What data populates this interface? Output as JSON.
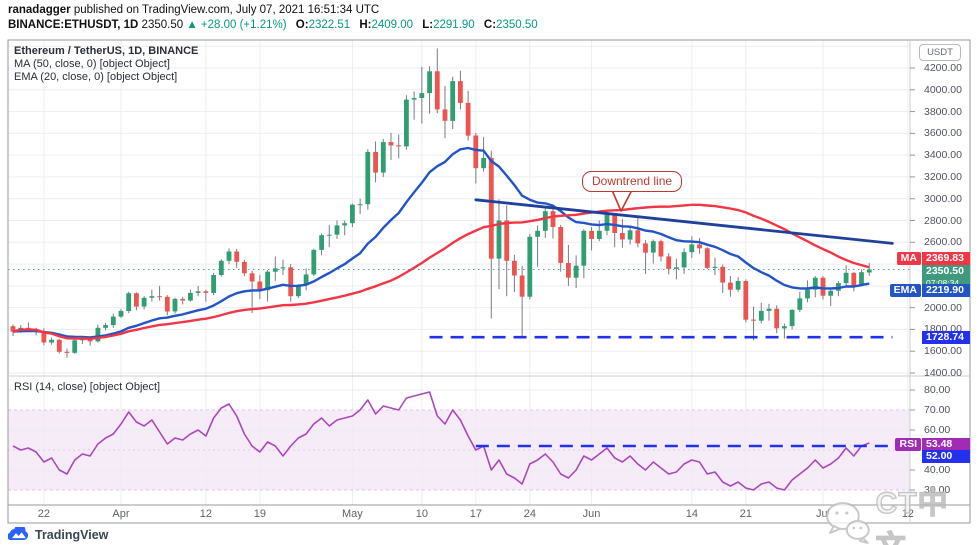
{
  "header": {
    "author": "ranadagger",
    "published": " published on TradingView.com, July 07, 2021 16:51:34 UTC",
    "line2": {
      "symbol": "BINANCE:ETHUSDT, 1D",
      "price": "2350.50",
      "change": "▲ +28.00 (+1.21%)",
      "o_label": "O:",
      "o": "2322.51",
      "h_label": "H:",
      "h": "2409.00",
      "l_label": "L:",
      "l": "2291.90",
      "c_label": "C:",
      "c": "2350.50"
    }
  },
  "legend": {
    "main": "Ethereum / TetherUS, 1D, BINANCE",
    "ma": "MA (50, close, 0) [object Object]",
    "ema": "EMA (20, close, 0) [object Object]",
    "rsi": "RSI (14, close) [object Object]"
  },
  "axis": {
    "currency": "USDT",
    "price_ticks": [
      {
        "v": 4200,
        "t": "4200.00"
      },
      {
        "v": 4000,
        "t": "4000.00"
      },
      {
        "v": 3800,
        "t": "3800.00"
      },
      {
        "v": 3600,
        "t": "3600.00"
      },
      {
        "v": 3400,
        "t": "3400.00"
      },
      {
        "v": 3200,
        "t": "3200.00"
      },
      {
        "v": 3000,
        "t": "3000.00"
      },
      {
        "v": 2800,
        "t": "2800.00"
      },
      {
        "v": 2600,
        "t": "2600.00"
      },
      {
        "v": 2000,
        "t": "2000.00"
      },
      {
        "v": 1800,
        "t": "1800.00"
      },
      {
        "v": 1600,
        "t": "1600.00"
      },
      {
        "v": 1400,
        "t": "1400.00"
      }
    ],
    "rsi_ticks": [
      {
        "v": 80,
        "t": "80.00"
      },
      {
        "v": 70,
        "t": "70.00"
      },
      {
        "v": 60,
        "t": "60.00"
      },
      {
        "v": 40,
        "t": "40.00"
      },
      {
        "v": 30,
        "t": "30.00"
      }
    ],
    "time_labels": [
      {
        "t": "22",
        "d": 4
      },
      {
        "t": "Apr",
        "d": 14
      },
      {
        "t": "12",
        "d": 25
      },
      {
        "t": "19",
        "d": 32
      },
      {
        "t": "May",
        "d": 44
      },
      {
        "t": "10",
        "d": 53
      },
      {
        "t": "17",
        "d": 60
      },
      {
        "t": "24",
        "d": 67
      },
      {
        "t": "Jun",
        "d": 75
      },
      {
        "t": "14",
        "d": 88
      },
      {
        "t": "21",
        "d": 95
      },
      {
        "t": "Jul",
        "d": 105
      },
      {
        "t": "12",
        "d": 116
      }
    ]
  },
  "badges": {
    "ma": {
      "tag": "MA",
      "value": "2369.83"
    },
    "price": {
      "value": "2350.50",
      "countdown": "07:08:34"
    },
    "ema": {
      "tag": "EMA",
      "value": "2219.90"
    },
    "support": {
      "value": "1728.74"
    },
    "rsi": {
      "tag": "RSI",
      "value": "53.48"
    },
    "rsi_level": {
      "value": "52.00"
    }
  },
  "annotation": {
    "text": "Downtrend line"
  },
  "watermark": {
    "text": "CT中文"
  },
  "footer": {
    "brand": "TradingView"
  },
  "colors": {
    "up": "#2f9e71",
    "down": "#ef5350",
    "wick": "#787b86",
    "ma_line": "#f23645",
    "ema_line": "#2254c5",
    "trend_line": "#1f419b",
    "dashed_blue": "#2330ee",
    "rsi_line": "#ab47bc",
    "rsi_band": "#ab47bc",
    "teal_text": "#089981",
    "price_badge": "#3f9a7d",
    "rsi_badge": "#a12bb4",
    "grid": "#ebedf0",
    "border": "#9598a1"
  },
  "chart_data": {
    "type": "candlestick",
    "symbol": "BINANCE:ETHUSDT",
    "interval": "1D",
    "start_date": "2021-03-18",
    "price_axis": {
      "min": 1400,
      "max": 4460,
      "tick_step": 200
    },
    "rsi_axis": {
      "min": 25,
      "max": 85,
      "bands": [
        30,
        50,
        70
      ]
    },
    "candles_ohlc": [
      [
        1830,
        1845,
        1740,
        1780
      ],
      [
        1780,
        1840,
        1770,
        1815
      ],
      [
        1815,
        1865,
        1790,
        1805
      ],
      [
        1805,
        1815,
        1745,
        1785
      ],
      [
        1785,
        1810,
        1655,
        1680
      ],
      [
        1680,
        1725,
        1660,
        1705
      ],
      [
        1705,
        1715,
        1580,
        1595
      ],
      [
        1595,
        1625,
        1540,
        1585
      ],
      [
        1585,
        1705,
        1575,
        1700
      ],
      [
        1700,
        1735,
        1665,
        1715
      ],
      [
        1715,
        1730,
        1650,
        1690
      ],
      [
        1690,
        1845,
        1680,
        1815
      ],
      [
        1815,
        1860,
        1790,
        1840
      ],
      [
        1840,
        1945,
        1815,
        1918
      ],
      [
        1918,
        1990,
        1905,
        1970
      ],
      [
        1970,
        2145,
        1950,
        2133
      ],
      [
        2133,
        2140,
        1975,
        2010
      ],
      [
        2010,
        2105,
        1985,
        2090
      ],
      [
        2090,
        2165,
        2055,
        2105
      ],
      [
        2105,
        2200,
        2065,
        2100
      ],
      [
        2100,
        2115,
        1930,
        1965
      ],
      [
        1965,
        2090,
        1945,
        2080
      ],
      [
        2080,
        2100,
        2030,
        2065
      ],
      [
        2065,
        2165,
        2055,
        2135
      ],
      [
        2135,
        2200,
        2105,
        2150
      ],
      [
        2150,
        2165,
        2055,
        2135
      ],
      [
        2135,
        2320,
        2115,
        2300
      ],
      [
        2300,
        2445,
        2285,
        2430
      ],
      [
        2430,
        2545,
        2400,
        2515
      ],
      [
        2515,
        2540,
        2365,
        2420
      ],
      [
        2420,
        2440,
        2290,
        2315
      ],
      [
        2315,
        2340,
        1950,
        2240
      ],
      [
        2240,
        2300,
        2080,
        2160
      ],
      [
        2160,
        2345,
        2055,
        2330
      ],
      [
        2330,
        2470,
        2245,
        2360
      ],
      [
        2360,
        2440,
        2300,
        2370
      ],
      [
        2370,
        2400,
        2055,
        2105
      ],
      [
        2105,
        2215,
        2090,
        2210
      ],
      [
        2210,
        2360,
        2160,
        2305
      ],
      [
        2305,
        2540,
        2290,
        2530
      ],
      [
        2530,
        2680,
        2480,
        2665
      ],
      [
        2665,
        2760,
        2555,
        2670
      ],
      [
        2670,
        2800,
        2630,
        2755
      ],
      [
        2755,
        2800,
        2665,
        2775
      ],
      [
        2775,
        2955,
        2740,
        2945
      ],
      [
        2945,
        3000,
        2860,
        2950
      ],
      [
        2950,
        3455,
        2900,
        3430
      ],
      [
        3430,
        3525,
        3150,
        3240
      ],
      [
        3240,
        3550,
        3200,
        3520
      ],
      [
        3520,
        3605,
        3355,
        3490
      ],
      [
        3490,
        3590,
        3370,
        3480
      ],
      [
        3480,
        3950,
        3450,
        3910
      ],
      [
        3910,
        3985,
        3725,
        3925
      ],
      [
        3925,
        4210,
        3690,
        3970
      ],
      [
        3970,
        4215,
        3780,
        4170
      ],
      [
        4170,
        4380,
        3785,
        3820
      ],
      [
        3820,
        4035,
        3555,
        3715
      ],
      [
        3715,
        4120,
        3640,
        4080
      ],
      [
        4080,
        4175,
        3820,
        3880
      ],
      [
        3880,
        3990,
        3535,
        3580
      ],
      [
        3580,
        3605,
        3140,
        3280
      ],
      [
        3280,
        3565,
        3250,
        3375
      ],
      [
        3375,
        3440,
        1900,
        2450
      ],
      [
        2450,
        2995,
        2170,
        2800
      ],
      [
        2800,
        2940,
        2105,
        2430
      ],
      [
        2430,
        2485,
        2145,
        2295
      ],
      [
        2295,
        2385,
        1728,
        2100
      ],
      [
        2100,
        2675,
        2075,
        2650
      ],
      [
        2650,
        2755,
        2375,
        2705
      ],
      [
        2705,
        2910,
        2640,
        2885
      ],
      [
        2885,
        2915,
        2635,
        2740
      ],
      [
        2740,
        2760,
        2330,
        2410
      ],
      [
        2410,
        2575,
        2200,
        2275
      ],
      [
        2275,
        2480,
        2180,
        2385
      ],
      [
        2385,
        2720,
        2270,
        2705
      ],
      [
        2705,
        2740,
        2525,
        2630
      ],
      [
        2630,
        2800,
        2610,
        2705
      ],
      [
        2705,
        2890,
        2665,
        2855
      ],
      [
        2855,
        2860,
        2555,
        2685
      ],
      [
        2685,
        2815,
        2550,
        2625
      ],
      [
        2625,
        2740,
        2580,
        2710
      ],
      [
        2710,
        2845,
        2555,
        2590
      ],
      [
        2590,
        2620,
        2310,
        2505
      ],
      [
        2505,
        2625,
        2405,
        2610
      ],
      [
        2610,
        2625,
        2425,
        2470
      ],
      [
        2470,
        2500,
        2305,
        2355
      ],
      [
        2355,
        2450,
        2260,
        2370
      ],
      [
        2370,
        2545,
        2310,
        2510
      ],
      [
        2510,
        2655,
        2455,
        2580
      ],
      [
        2580,
        2640,
        2495,
        2545
      ],
      [
        2545,
        2555,
        2355,
        2365
      ],
      [
        2365,
        2460,
        2300,
        2375
      ],
      [
        2375,
        2395,
        2135,
        2230
      ],
      [
        2230,
        2290,
        2100,
        2165
      ],
      [
        2165,
        2280,
        2145,
        2245
      ],
      [
        2245,
        2260,
        1865,
        1890
      ],
      [
        1890,
        2010,
        1700,
        1880
      ],
      [
        1880,
        2045,
        1855,
        1970
      ],
      [
        1970,
        2035,
        1880,
        1990
      ],
      [
        1990,
        2020,
        1765,
        1810
      ],
      [
        1810,
        1855,
        1717,
        1830
      ],
      [
        1830,
        1985,
        1800,
        1980
      ],
      [
        1980,
        2145,
        1960,
        2085
      ],
      [
        2085,
        2250,
        2050,
        2165
      ],
      [
        2165,
        2290,
        2095,
        2275
      ],
      [
        2275,
        2290,
        2075,
        2110
      ],
      [
        2110,
        2165,
        2015,
        2155
      ],
      [
        2155,
        2245,
        2105,
        2225
      ],
      [
        2225,
        2390,
        2190,
        2320
      ],
      [
        2320,
        2325,
        2150,
        2200
      ],
      [
        2200,
        2350,
        2195,
        2325
      ],
      [
        2322.51,
        2409,
        2291.9,
        2350.5
      ]
    ],
    "indicators": [
      {
        "name": "MA",
        "length": 50,
        "source": "close",
        "last_value": 2369.83
      },
      {
        "name": "EMA",
        "length": 20,
        "source": "close",
        "last_value": 2219.9
      },
      {
        "name": "RSI",
        "length": 14,
        "source": "close",
        "last_value": 53.48
      }
    ],
    "rsi_values": [
      52,
      50,
      51,
      49,
      44,
      46,
      40,
      38,
      45,
      48,
      47,
      53,
      56,
      58,
      63,
      69,
      64,
      62,
      65,
      59,
      53,
      56,
      55,
      58,
      60,
      57,
      66,
      71,
      73,
      67,
      58,
      52,
      49,
      54,
      52,
      47,
      52,
      56,
      58,
      63,
      66,
      62,
      65,
      66,
      67,
      70,
      75,
      68,
      72,
      71,
      70,
      76,
      77,
      78,
      79,
      67,
      63,
      70,
      65,
      57,
      50,
      52,
      40,
      45,
      38,
      36,
      33,
      43,
      45,
      48,
      44,
      38,
      36,
      40,
      47,
      45,
      48,
      51,
      46,
      44,
      47,
      43,
      40,
      44,
      41,
      38,
      39,
      43,
      45,
      44,
      38,
      39,
      34,
      32,
      34,
      31,
      30,
      33,
      34,
      31,
      30,
      35,
      38,
      41,
      45,
      41,
      43,
      46,
      51,
      47,
      52,
      53.48
    ],
    "overlays": {
      "downtrend_line": {
        "from": {
          "day": 60,
          "price": 2990
        },
        "to": {
          "day": 114,
          "price": 2590
        }
      },
      "support_line": {
        "price": 1728.74,
        "from_day": 54,
        "to_day": 114
      },
      "last_price_line": {
        "price": 2350.5
      },
      "rsi_level_line": {
        "value": 52,
        "from_day": 60,
        "to_day": 116
      }
    }
  }
}
